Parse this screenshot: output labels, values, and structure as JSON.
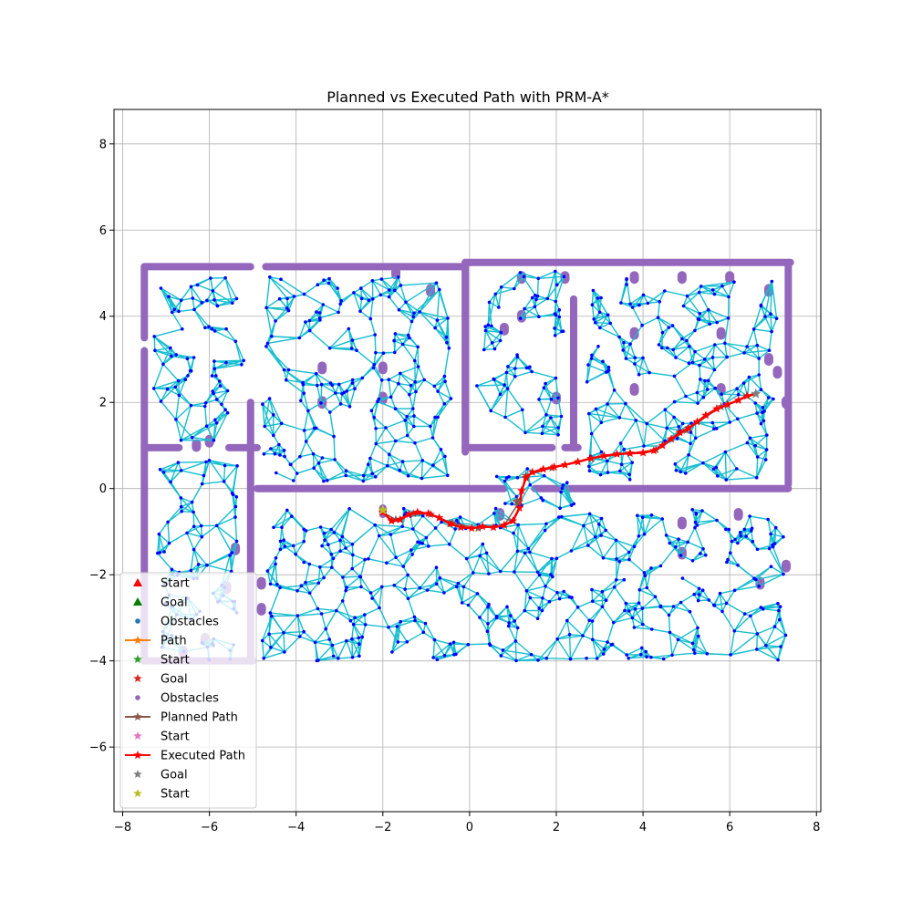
{
  "chart_data": {
    "type": "line",
    "title": "Planned vs Executed Path with PRM-A*",
    "xlabel": "",
    "ylabel": "",
    "xlim": [
      -8.2,
      8.1
    ],
    "ylim": [
      -7.5,
      8.8
    ],
    "xticks": [
      -8,
      -6,
      -4,
      -2,
      0,
      2,
      4,
      6,
      8
    ],
    "yticks": [
      -6,
      -4,
      -2,
      0,
      2,
      4,
      6,
      8
    ],
    "grid": true,
    "legend_placement": "lower-left",
    "colors": {
      "obstacles": "#9467bd",
      "roadmap": "#17becf",
      "roadmap_nodes": "#0000ff",
      "executed_path": "#ff0000",
      "planned_path": "#8c564b",
      "start_marker": "#bcbd22",
      "goal_marker": "#7f7f7f"
    },
    "obstacles": {
      "segments": [
        {
          "from": [
            -7.5,
            5.15
          ],
          "to": [
            -5.05,
            5.15
          ]
        },
        {
          "from": [
            -4.7,
            5.15
          ],
          "to": [
            -0.1,
            5.15
          ]
        },
        {
          "from": [
            -0.1,
            5.25
          ],
          "to": [
            7.4,
            5.25
          ]
        },
        {
          "from": [
            -7.5,
            5.15
          ],
          "to": [
            -7.5,
            3.5
          ]
        },
        {
          "from": [
            -7.5,
            3.2
          ],
          "to": [
            -7.5,
            -4.0
          ]
        },
        {
          "from": [
            7.35,
            5.25
          ],
          "to": [
            7.35,
            0.1
          ]
        },
        {
          "from": [
            -7.5,
            0.95
          ],
          "to": [
            -6.7,
            0.95
          ]
        },
        {
          "from": [
            -5.55,
            0.95
          ],
          "to": [
            -4.9,
            0.95
          ]
        },
        {
          "from": [
            -5.05,
            2.0
          ],
          "to": [
            -5.05,
            -4.0
          ]
        },
        {
          "from": [
            -4.9,
            0.0
          ],
          "to": [
            0.8,
            0.0
          ]
        },
        {
          "from": [
            1.5,
            0.0
          ],
          "to": [
            7.35,
            0.0
          ]
        },
        {
          "from": [
            -0.1,
            5.25
          ],
          "to": [
            -0.1,
            0.85
          ]
        },
        {
          "from": [
            -0.1,
            0.95
          ],
          "to": [
            1.9,
            0.95
          ]
        },
        {
          "from": [
            2.2,
            0.95
          ],
          "to": [
            2.5,
            0.95
          ]
        },
        {
          "from": [
            2.4,
            4.4
          ],
          "to": [
            2.4,
            0.95
          ]
        },
        {
          "from": [
            -7.5,
            -4.0
          ],
          "to": [
            -5.0,
            -4.0
          ]
        },
        {
          "from": [
            -2.0,
            -0.45
          ],
          "to": [
            -2.0,
            -0.6
          ]
        }
      ],
      "blobs": [
        [
          -3.4,
          2.8
        ],
        [
          -3.4,
          2.0
        ],
        [
          -2.0,
          2.8
        ],
        [
          -2.0,
          2.1
        ],
        [
          3.8,
          3.6
        ],
        [
          3.8,
          2.3
        ],
        [
          5.8,
          3.6
        ],
        [
          5.8,
          2.3
        ],
        [
          2.0,
          2.1
        ],
        [
          -0.9,
          4.6
        ],
        [
          0.8,
          3.7
        ],
        [
          1.2,
          4.0
        ],
        [
          4.9,
          4.9
        ],
        [
          6.0,
          4.9
        ],
        [
          6.9,
          4.6
        ],
        [
          6.9,
          3.0
        ],
        [
          7.1,
          2.7
        ],
        [
          7.3,
          2.0
        ],
        [
          -6.3,
          1.0
        ],
        [
          -6.0,
          1.1
        ],
        [
          -5.4,
          -1.4
        ],
        [
          -5.6,
          -2.3
        ],
        [
          -4.8,
          -2.2
        ],
        [
          -4.8,
          -2.8
        ],
        [
          -6.1,
          -3.5
        ],
        [
          -6.6,
          -3.8
        ],
        [
          0.7,
          -0.6
        ],
        [
          4.9,
          -0.8
        ],
        [
          4.9,
          -1.5
        ],
        [
          6.2,
          -0.6
        ],
        [
          6.7,
          -2.2
        ],
        [
          7.3,
          -1.8
        ],
        [
          1.2,
          4.9
        ],
        [
          2.2,
          4.9
        ],
        [
          3.8,
          4.9
        ],
        [
          -1.7,
          5.0
        ]
      ]
    },
    "roadmap_regions": [
      {
        "name": "upper-left-room",
        "x": [
          -7.3,
          -5.2
        ],
        "y": [
          1.1,
          4.9
        ]
      },
      {
        "name": "upper-middle-room",
        "x": [
          -4.8,
          -0.4
        ],
        "y": [
          0.15,
          4.95
        ]
      },
      {
        "name": "upper-right-room-a",
        "x": [
          0.15,
          2.2
        ],
        "y": [
          1.2,
          5.05
        ]
      },
      {
        "name": "upper-right-room-b",
        "x": [
          2.7,
          7.1
        ],
        "y": [
          0.2,
          5.0
        ]
      },
      {
        "name": "left-corridor",
        "x": [
          -7.2,
          -5.3
        ],
        "y": [
          -4.0,
          0.8
        ]
      },
      {
        "name": "lower-room",
        "x": [
          -4.8,
          7.3
        ],
        "y": [
          -4.0,
          -0.45
        ]
      },
      {
        "name": "door-connector",
        "x": [
          0.6,
          2.6
        ],
        "y": [
          -0.5,
          0.75
        ]
      }
    ],
    "series": [
      {
        "name": "Executed Path",
        "color": "#ff0000",
        "marker": "star",
        "x": [
          -2.0,
          -1.8,
          -1.6,
          -1.4,
          -1.2,
          -0.95,
          -0.7,
          -0.45,
          -0.2,
          0.05,
          0.3,
          0.55,
          0.8,
          1.0,
          1.15,
          1.2,
          1.3,
          1.45,
          1.7,
          1.95,
          2.2,
          2.5,
          2.8,
          3.1,
          3.4,
          3.7,
          4.0,
          4.25,
          4.45,
          4.65,
          4.85,
          5.05,
          5.25,
          5.45,
          5.7,
          5.95,
          6.2,
          6.4,
          6.6
        ],
        "y": [
          -0.55,
          -0.75,
          -0.72,
          -0.6,
          -0.55,
          -0.58,
          -0.68,
          -0.82,
          -0.9,
          -0.92,
          -0.88,
          -0.9,
          -0.85,
          -0.75,
          -0.45,
          -0.05,
          0.25,
          0.38,
          0.45,
          0.5,
          0.55,
          0.62,
          0.7,
          0.76,
          0.8,
          0.82,
          0.83,
          0.88,
          1.0,
          1.15,
          1.3,
          1.4,
          1.55,
          1.7,
          1.85,
          1.95,
          2.05,
          2.15,
          2.2
        ]
      },
      {
        "name": "Planned Path",
        "color": "#8c564b",
        "marker": "star",
        "x": [
          -2.0,
          -1.7,
          -1.3,
          -0.9,
          -0.4,
          0.2,
          0.8,
          1.15,
          1.3,
          1.9,
          2.8,
          3.7,
          4.3,
          5.0,
          5.8,
          6.6
        ],
        "y": [
          -0.55,
          -0.72,
          -0.58,
          -0.6,
          -0.8,
          -0.92,
          -0.85,
          -0.3,
          0.3,
          0.48,
          0.7,
          0.82,
          0.9,
          1.35,
          1.9,
          2.2
        ]
      }
    ],
    "markers": {
      "start": {
        "x": -2.0,
        "y": -0.5,
        "color": "#bcbd22"
      },
      "goal": {
        "x": 6.6,
        "y": 2.2,
        "color": "#7f7f7f"
      },
      "planned_start": {
        "x": 1.1,
        "y": -0.3,
        "color": "#8c564b"
      }
    },
    "legend": [
      {
        "label": "Start",
        "marker": "triangle",
        "color": "#ff0000",
        "line": false
      },
      {
        "label": "Goal",
        "marker": "triangle",
        "color": "#008000",
        "line": false
      },
      {
        "label": "Obstacles",
        "marker": "dot",
        "color": "#1f77b4",
        "line": false
      },
      {
        "label": "Path",
        "marker": "star",
        "color": "#ff7f0e",
        "line": true
      },
      {
        "label": "Start",
        "marker": "star",
        "color": "#2ca02c",
        "line": false
      },
      {
        "label": "Goal",
        "marker": "star",
        "color": "#d62728",
        "line": false
      },
      {
        "label": "Obstacles",
        "marker": "dot",
        "color": "#9467bd",
        "line": false
      },
      {
        "label": "Planned Path",
        "marker": "star",
        "color": "#8c564b",
        "line": true
      },
      {
        "label": "Start",
        "marker": "star",
        "color": "#e377c2",
        "line": false
      },
      {
        "label": "Executed Path",
        "marker": "star",
        "color": "#ff0000",
        "line": true
      },
      {
        "label": "Goal",
        "marker": "star",
        "color": "#7f7f7f",
        "line": false
      },
      {
        "label": "Start",
        "marker": "star",
        "color": "#bcbd22",
        "line": false
      }
    ]
  }
}
